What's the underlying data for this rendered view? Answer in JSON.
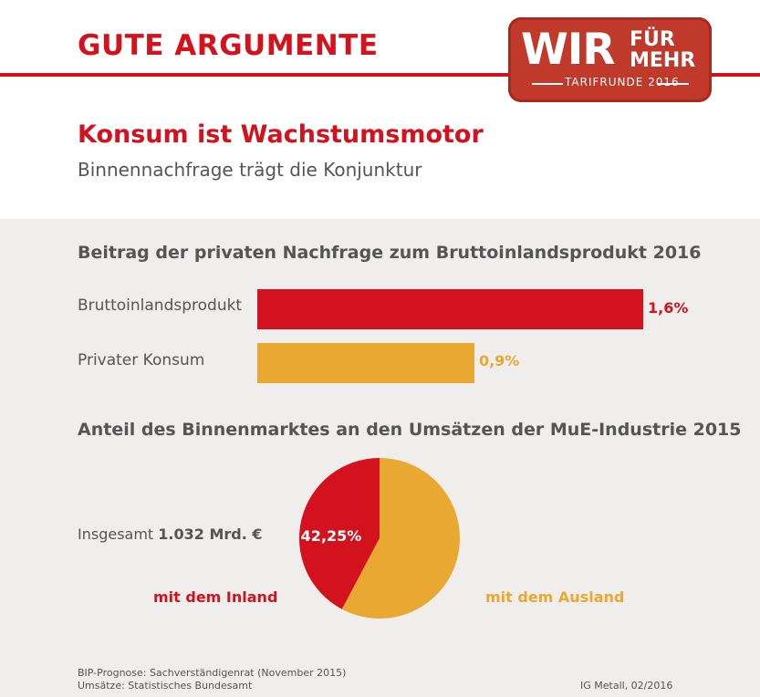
{
  "header": {
    "title": "GUTE ARGUMENTE"
  },
  "logo": {
    "line1": "WIR",
    "line2a": "FÜR",
    "line2b": "MEHR",
    "subline": "TARIFRUNDE 2016"
  },
  "page": {
    "title": "Konsum ist Wachstumsmotor",
    "subtitle": "Binnennachfrage trägt die Konjunktur"
  },
  "colors": {
    "red": "#d4121e",
    "orange": "#e8a832",
    "background": "#f0eeec"
  },
  "chart_data": [
    {
      "type": "bar",
      "orientation": "horizontal",
      "title": "Beitrag der privaten Nachfrage zum Bruttoinlandsprodukt 2016",
      "categories": [
        "Bruttoinlandsprodukt",
        "Privater Konsum"
      ],
      "values": [
        1.6,
        0.9
      ],
      "value_labels": [
        "1,6%",
        "0,9%"
      ],
      "colors": [
        "#d4121e",
        "#e8a832"
      ],
      "xlim": [
        0,
        1.6
      ]
    },
    {
      "type": "pie",
      "title": "Anteil des Binnenmarktes an den Umsätzen der MuE-Industrie 2015",
      "labels": [
        "mit dem Inland",
        "mit dem Ausland"
      ],
      "values": [
        42.25,
        57.75
      ],
      "slice_label": "42,25%",
      "colors": [
        "#d4121e",
        "#e8a832"
      ],
      "total_prefix": "Insgesamt ",
      "total_value": "1.032 Mrd. €"
    }
  ],
  "footer": {
    "source1": "BIP-Prognose: Sachverständigenrat (November 2015)",
    "source2": "Umsätze: Statistisches Bundesamt",
    "credit": "IG Metall, 02/2016"
  }
}
